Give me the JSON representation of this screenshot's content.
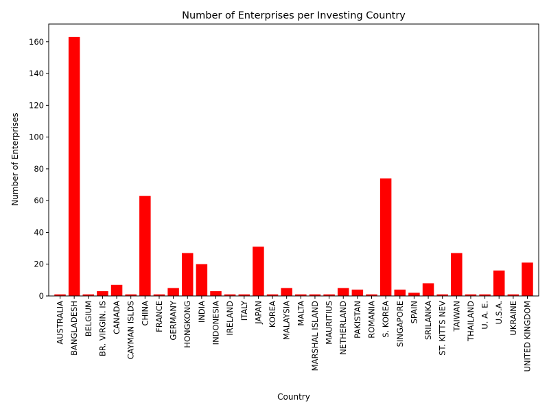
{
  "chart_data": {
    "type": "bar",
    "title": "Number of Enterprises per Investing Country",
    "xlabel": "Country",
    "ylabel": "Number of Enterprises",
    "ylim": [
      0,
      171.15
    ],
    "yticks": [
      0,
      20,
      40,
      60,
      80,
      100,
      120,
      140,
      160
    ],
    "grid": false,
    "bar_color": "#ff0000",
    "categories": [
      "AUSTRALIA",
      "BANGLADESH",
      "BELGIUM",
      "BR. VIRGIN. IS",
      "CANADA",
      "CAYMAN ISLDS",
      "CHINA",
      "FRANCE",
      "GERMANY",
      "HONGKONG",
      "INDIA",
      "INDONESIA",
      "IRELAND",
      "ITALY",
      "JAPAN",
      "KOREA",
      "MALAYSIA",
      "MALTA",
      "MARSHAL ISLAND",
      "MAURITIUS",
      "NETHERLAND",
      "PAKISTAN",
      "ROMANIA",
      "S. KOREA",
      "SINGAPORE",
      "SPAIN",
      "SRILANKA",
      "ST. KITTS NEV",
      "TAIWAN",
      "THAILAND",
      "U. A. E.",
      "U.S.A.",
      "UKRAINE",
      "UNITED KINGDOM"
    ],
    "values": [
      1,
      163,
      1,
      3,
      7,
      1,
      63,
      1,
      5,
      27,
      20,
      3,
      1,
      1,
      31,
      1,
      5,
      1,
      1,
      1,
      5,
      4,
      1,
      74,
      4,
      2,
      8,
      1,
      27,
      1,
      1,
      16,
      1,
      21
    ]
  }
}
